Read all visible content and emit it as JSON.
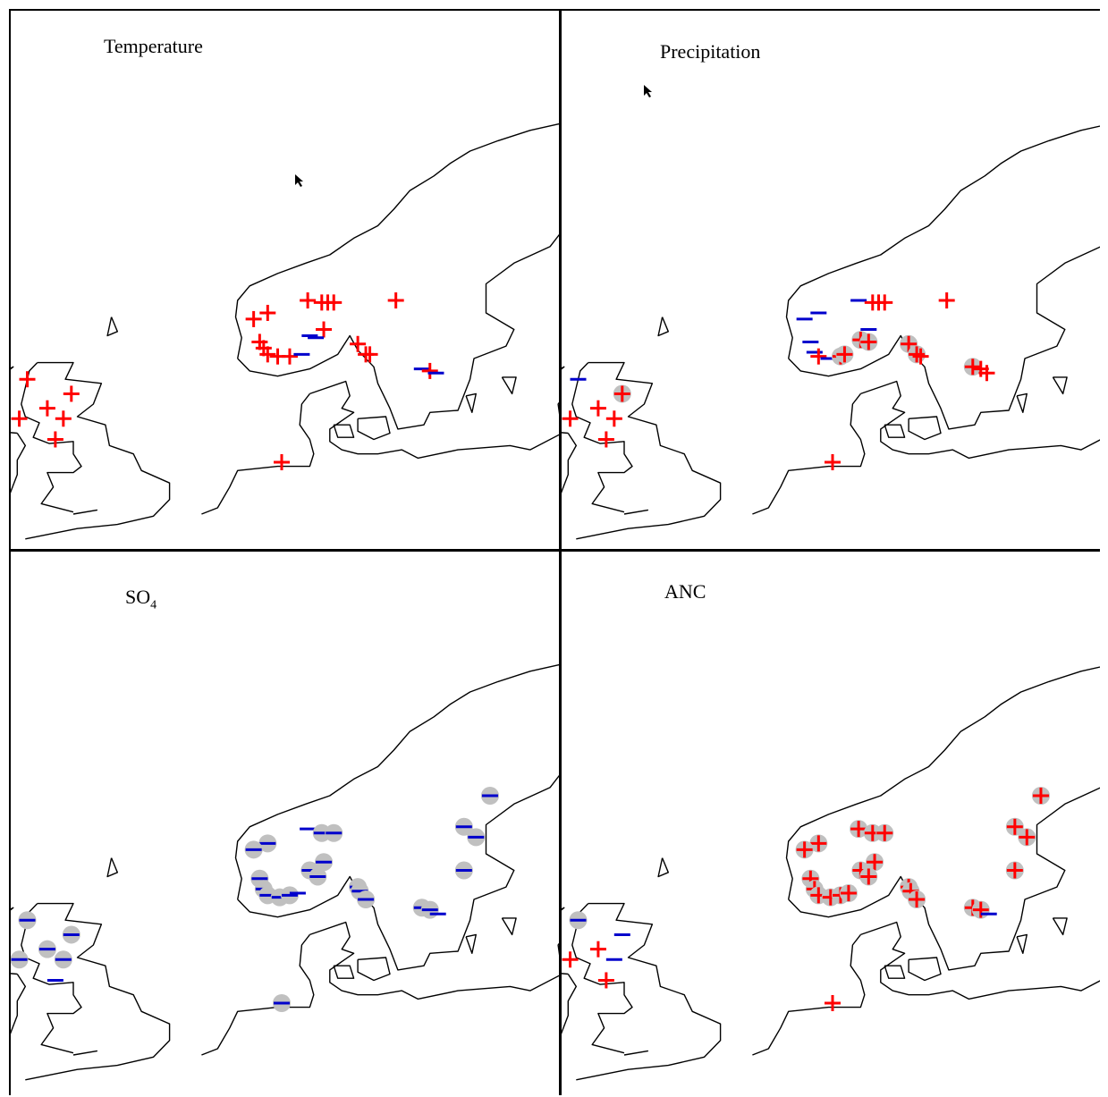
{
  "panels": [
    {
      "id": "temperature",
      "title": "Temperature",
      "title_sub": "",
      "sites": [
        {
          "lon": 22.4,
          "lat": 69.6,
          "sign": "+",
          "sig": false
        },
        {
          "lon": 29.6,
          "lat": 70.2,
          "sign": "+",
          "sig": false
        },
        {
          "lon": 8.5,
          "lat": 61.6,
          "sign": "+",
          "sig": false
        },
        {
          "lon": 9.2,
          "lat": 61.5,
          "sign": "+",
          "sig": false
        },
        {
          "lon": 9.5,
          "lat": 61.5,
          "sign": "+",
          "sig": false
        },
        {
          "lon": 9.8,
          "lat": 61.5,
          "sign": "+",
          "sig": false
        },
        {
          "lon": 12.9,
          "lat": 61.6,
          "sign": "+",
          "sig": false
        },
        {
          "lon": 6.5,
          "lat": 61.0,
          "sign": "+",
          "sig": false
        },
        {
          "lon": 5.8,
          "lat": 60.7,
          "sign": "+",
          "sig": false
        },
        {
          "lon": 9.3,
          "lat": 60.2,
          "sign": "+",
          "sig": false
        },
        {
          "lon": 8.6,
          "lat": 59.9,
          "sign": "-",
          "sig": false
        },
        {
          "lon": 8.9,
          "lat": 59.8,
          "sign": "-",
          "sig": false
        },
        {
          "lon": 6.1,
          "lat": 59.6,
          "sign": "+",
          "sig": false
        },
        {
          "lon": 6.3,
          "lat": 59.3,
          "sign": "+",
          "sig": false
        },
        {
          "lon": 11.0,
          "lat": 59.5,
          "sign": "+",
          "sig": false
        },
        {
          "lon": 6.5,
          "lat": 59.0,
          "sign": "+",
          "sig": false
        },
        {
          "lon": 7.0,
          "lat": 58.9,
          "sign": "+",
          "sig": false
        },
        {
          "lon": 7.6,
          "lat": 58.9,
          "sign": "+",
          "sig": false
        },
        {
          "lon": 8.2,
          "lat": 59.0,
          "sign": "-",
          "sig": false
        },
        {
          "lon": 11.4,
          "lat": 59.0,
          "sign": "+",
          "sig": false
        },
        {
          "lon": 11.6,
          "lat": 59.0,
          "sign": "+",
          "sig": false
        },
        {
          "lon": 14.2,
          "lat": 58.3,
          "sign": "-",
          "sig": false
        },
        {
          "lon": 14.6,
          "lat": 58.2,
          "sign": "+",
          "sig": false
        },
        {
          "lon": 14.9,
          "lat": 58.1,
          "sign": "-",
          "sig": false
        },
        {
          "lon": -5.5,
          "lat": 57.8,
          "sign": "+",
          "sig": false
        },
        {
          "lon": -3.3,
          "lat": 57.1,
          "sign": "+",
          "sig": false
        },
        {
          "lon": -4.5,
          "lat": 56.4,
          "sign": "+",
          "sig": false
        },
        {
          "lon": -5.9,
          "lat": 55.9,
          "sign": "+",
          "sig": false
        },
        {
          "lon": -3.7,
          "lat": 55.9,
          "sign": "+",
          "sig": false
        },
        {
          "lon": -4.1,
          "lat": 54.9,
          "sign": "+",
          "sig": false
        },
        {
          "lon": 7.2,
          "lat": 53.8,
          "sign": "+",
          "sig": false
        }
      ]
    },
    {
      "id": "precipitation",
      "title": "Precipitation",
      "title_sub": "",
      "sites": [
        {
          "lon": 22.4,
          "lat": 69.6,
          "sign": "+",
          "sig": true
        },
        {
          "lon": 29.6,
          "lat": 70.2,
          "sign": "-",
          "sig": false
        },
        {
          "lon": 8.5,
          "lat": 61.6,
          "sign": "-",
          "sig": false
        },
        {
          "lon": 9.2,
          "lat": 61.5,
          "sign": "+",
          "sig": false
        },
        {
          "lon": 9.5,
          "lat": 61.5,
          "sign": "+",
          "sig": false
        },
        {
          "lon": 9.8,
          "lat": 61.5,
          "sign": "+",
          "sig": false
        },
        {
          "lon": 12.9,
          "lat": 61.6,
          "sign": "+",
          "sig": false
        },
        {
          "lon": 6.5,
          "lat": 61.0,
          "sign": "-",
          "sig": false
        },
        {
          "lon": 5.8,
          "lat": 60.7,
          "sign": "-",
          "sig": false
        },
        {
          "lon": 9.0,
          "lat": 60.2,
          "sign": "-",
          "sig": false
        },
        {
          "lon": 8.6,
          "lat": 59.7,
          "sign": "+",
          "sig": true
        },
        {
          "lon": 9.0,
          "lat": 59.6,
          "sign": "+",
          "sig": true
        },
        {
          "lon": 6.1,
          "lat": 59.6,
          "sign": "-",
          "sig": false
        },
        {
          "lon": 6.3,
          "lat": 59.1,
          "sign": "-",
          "sig": false
        },
        {
          "lon": 11.0,
          "lat": 59.5,
          "sign": "+",
          "sig": true
        },
        {
          "lon": 6.5,
          "lat": 58.9,
          "sign": "+",
          "sig": false
        },
        {
          "lon": 7.0,
          "lat": 58.8,
          "sign": "-",
          "sig": false
        },
        {
          "lon": 7.6,
          "lat": 58.9,
          "sign": "+",
          "sig": true
        },
        {
          "lon": 7.8,
          "lat": 59.0,
          "sign": "+",
          "sig": true
        },
        {
          "lon": 11.4,
          "lat": 59.0,
          "sign": "+",
          "sig": true
        },
        {
          "lon": 11.6,
          "lat": 58.9,
          "sign": "+",
          "sig": false
        },
        {
          "lon": 14.2,
          "lat": 58.4,
          "sign": "+",
          "sig": true
        },
        {
          "lon": 14.6,
          "lat": 58.3,
          "sign": "+",
          "sig": false
        },
        {
          "lon": 14.9,
          "lat": 58.1,
          "sign": "+",
          "sig": false
        },
        {
          "lon": -5.5,
          "lat": 57.8,
          "sign": "-",
          "sig": false
        },
        {
          "lon": -3.3,
          "lat": 57.1,
          "sign": "+",
          "sig": true
        },
        {
          "lon": -4.5,
          "lat": 56.4,
          "sign": "+",
          "sig": false
        },
        {
          "lon": -5.9,
          "lat": 55.9,
          "sign": "+",
          "sig": false
        },
        {
          "lon": -3.7,
          "lat": 55.9,
          "sign": "+",
          "sig": false
        },
        {
          "lon": -4.1,
          "lat": 54.9,
          "sign": "+",
          "sig": false
        },
        {
          "lon": 7.2,
          "lat": 53.8,
          "sign": "+",
          "sig": false
        }
      ]
    },
    {
      "id": "so4",
      "title": "SO",
      "title_sub": "4",
      "sites": [
        {
          "lon": 22.4,
          "lat": 69.6,
          "sign": "+",
          "sig": false
        },
        {
          "lon": 29.6,
          "lat": 70.2,
          "sign": "-",
          "sig": true
        },
        {
          "lon": 17.6,
          "lat": 63.8,
          "sign": "-",
          "sig": true
        },
        {
          "lon": 8.5,
          "lat": 62.2,
          "sign": "-",
          "sig": false
        },
        {
          "lon": 9.2,
          "lat": 62.0,
          "sign": "-",
          "sig": true
        },
        {
          "lon": 9.8,
          "lat": 62.0,
          "sign": "-",
          "sig": true
        },
        {
          "lon": 16.3,
          "lat": 62.3,
          "sign": "-",
          "sig": true
        },
        {
          "lon": 16.9,
          "lat": 61.8,
          "sign": "-",
          "sig": true
        },
        {
          "lon": 6.5,
          "lat": 61.5,
          "sign": "-",
          "sig": true
        },
        {
          "lon": 5.8,
          "lat": 61.2,
          "sign": "-",
          "sig": true
        },
        {
          "lon": 9.3,
          "lat": 60.6,
          "sign": "-",
          "sig": true
        },
        {
          "lon": 8.6,
          "lat": 60.2,
          "sign": "-",
          "sig": true
        },
        {
          "lon": 9.0,
          "lat": 59.9,
          "sign": "-",
          "sig": true
        },
        {
          "lon": 16.3,
          "lat": 60.2,
          "sign": "-",
          "sig": true
        },
        {
          "lon": 6.1,
          "lat": 59.8,
          "sign": "-",
          "sig": true
        },
        {
          "lon": 6.3,
          "lat": 59.3,
          "sign": "-",
          "sig": true
        },
        {
          "lon": 11.0,
          "lat": 59.4,
          "sign": "-",
          "sig": true
        },
        {
          "lon": 6.5,
          "lat": 59.0,
          "sign": "-",
          "sig": true
        },
        {
          "lon": 7.1,
          "lat": 58.9,
          "sign": "-",
          "sig": true
        },
        {
          "lon": 7.6,
          "lat": 59.0,
          "sign": "-",
          "sig": true
        },
        {
          "lon": 8.0,
          "lat": 59.1,
          "sign": "-",
          "sig": false
        },
        {
          "lon": 11.1,
          "lat": 59.2,
          "sign": "-",
          "sig": true
        },
        {
          "lon": 11.4,
          "lat": 58.8,
          "sign": "-",
          "sig": true
        },
        {
          "lon": 14.2,
          "lat": 58.4,
          "sign": "-",
          "sig": true
        },
        {
          "lon": 14.6,
          "lat": 58.3,
          "sign": "-",
          "sig": true
        },
        {
          "lon": 15.0,
          "lat": 58.1,
          "sign": "-",
          "sig": false
        },
        {
          "lon": -5.5,
          "lat": 57.8,
          "sign": "-",
          "sig": true
        },
        {
          "lon": -3.3,
          "lat": 57.1,
          "sign": "-",
          "sig": true
        },
        {
          "lon": -4.5,
          "lat": 56.4,
          "sign": "-",
          "sig": true
        },
        {
          "lon": -5.9,
          "lat": 55.9,
          "sign": "-",
          "sig": true
        },
        {
          "lon": -3.7,
          "lat": 55.9,
          "sign": "-",
          "sig": true
        },
        {
          "lon": -4.1,
          "lat": 54.9,
          "sign": "-",
          "sig": false
        },
        {
          "lon": 7.2,
          "lat": 53.8,
          "sign": "-",
          "sig": true
        }
      ]
    },
    {
      "id": "anc",
      "title": "ANC",
      "title_sub": "",
      "sites": [
        {
          "lon": 22.4,
          "lat": 69.6,
          "sign": "+",
          "sig": false
        },
        {
          "lon": 29.6,
          "lat": 70.2,
          "sign": "+",
          "sig": true
        },
        {
          "lon": 17.6,
          "lat": 63.8,
          "sign": "+",
          "sig": true
        },
        {
          "lon": 8.5,
          "lat": 62.2,
          "sign": "+",
          "sig": true
        },
        {
          "lon": 9.2,
          "lat": 62.0,
          "sign": "+",
          "sig": true
        },
        {
          "lon": 9.8,
          "lat": 62.0,
          "sign": "+",
          "sig": true
        },
        {
          "lon": 16.3,
          "lat": 62.3,
          "sign": "+",
          "sig": true
        },
        {
          "lon": 16.9,
          "lat": 61.8,
          "sign": "+",
          "sig": true
        },
        {
          "lon": 6.5,
          "lat": 61.5,
          "sign": "+",
          "sig": true
        },
        {
          "lon": 5.8,
          "lat": 61.2,
          "sign": "+",
          "sig": true
        },
        {
          "lon": 9.3,
          "lat": 60.6,
          "sign": "+",
          "sig": true
        },
        {
          "lon": 8.6,
          "lat": 60.2,
          "sign": "+",
          "sig": true
        },
        {
          "lon": 9.0,
          "lat": 59.9,
          "sign": "+",
          "sig": true
        },
        {
          "lon": 16.3,
          "lat": 60.2,
          "sign": "+",
          "sig": true
        },
        {
          "lon": 6.1,
          "lat": 59.8,
          "sign": "+",
          "sig": true
        },
        {
          "lon": 6.3,
          "lat": 59.3,
          "sign": "+",
          "sig": true
        },
        {
          "lon": 11.0,
          "lat": 59.4,
          "sign": "+",
          "sig": true
        },
        {
          "lon": 6.5,
          "lat": 59.0,
          "sign": "+",
          "sig": true
        },
        {
          "lon": 7.1,
          "lat": 58.9,
          "sign": "+",
          "sig": true
        },
        {
          "lon": 7.6,
          "lat": 59.0,
          "sign": "+",
          "sig": true
        },
        {
          "lon": 8.0,
          "lat": 59.1,
          "sign": "+",
          "sig": true
        },
        {
          "lon": 11.1,
          "lat": 59.2,
          "sign": "+",
          "sig": true
        },
        {
          "lon": 11.4,
          "lat": 58.8,
          "sign": "+",
          "sig": true
        },
        {
          "lon": 14.2,
          "lat": 58.4,
          "sign": "+",
          "sig": true
        },
        {
          "lon": 14.6,
          "lat": 58.3,
          "sign": "+",
          "sig": true
        },
        {
          "lon": 15.0,
          "lat": 58.1,
          "sign": "-",
          "sig": false
        },
        {
          "lon": -5.5,
          "lat": 57.8,
          "sign": "-",
          "sig": true
        },
        {
          "lon": -3.3,
          "lat": 57.1,
          "sign": "-",
          "sig": false
        },
        {
          "lon": -4.5,
          "lat": 56.4,
          "sign": "+",
          "sig": false
        },
        {
          "lon": -5.9,
          "lat": 55.9,
          "sign": "+",
          "sig": false
        },
        {
          "lon": -3.7,
          "lat": 55.9,
          "sign": "-",
          "sig": false
        },
        {
          "lon": -4.1,
          "lat": 54.9,
          "sign": "+",
          "sig": false
        },
        {
          "lon": 7.2,
          "lat": 53.8,
          "sign": "+",
          "sig": false
        }
      ]
    }
  ],
  "colors": {
    "positive": "#ff0000",
    "negative": "#0000cc",
    "significant": "#c0c0c0",
    "coast": "#000000"
  },
  "icons": {
    "positive": "plus-sign",
    "negative": "minus-sign",
    "significant": "grey-disc"
  }
}
